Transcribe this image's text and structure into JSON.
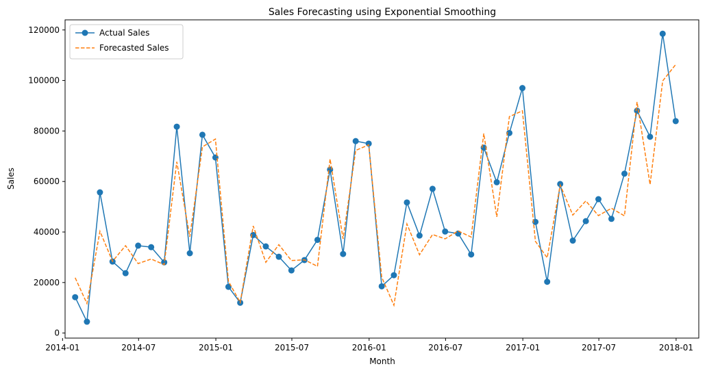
{
  "chart_data": {
    "type": "line",
    "title": "Sales Forecasting using Exponential Smoothing",
    "xlabel": "Month",
    "ylabel": "Sales",
    "x": [
      "2014-01-31",
      "2014-02-28",
      "2014-03-31",
      "2014-04-30",
      "2014-05-31",
      "2014-06-30",
      "2014-07-31",
      "2014-08-31",
      "2014-09-30",
      "2014-10-31",
      "2014-11-30",
      "2014-12-31",
      "2015-01-31",
      "2015-02-28",
      "2015-03-31",
      "2015-04-30",
      "2015-05-31",
      "2015-06-30",
      "2015-07-31",
      "2015-08-31",
      "2015-09-30",
      "2015-10-31",
      "2015-11-30",
      "2015-12-31",
      "2016-01-31",
      "2016-02-29",
      "2016-03-31",
      "2016-04-30",
      "2016-05-31",
      "2016-06-30",
      "2016-07-31",
      "2016-08-31",
      "2016-09-30",
      "2016-10-31",
      "2016-11-30",
      "2016-12-31",
      "2017-01-31",
      "2017-02-28",
      "2017-03-31",
      "2017-04-30",
      "2017-05-31",
      "2017-06-30",
      "2017-07-31",
      "2017-08-31",
      "2017-09-30",
      "2017-10-31",
      "2017-11-30",
      "2017-12-31"
    ],
    "series": [
      {
        "name": "Actual Sales",
        "color": "#1f77b4",
        "style": "solid-with-markers",
        "values": [
          14200,
          4500,
          55700,
          28300,
          23700,
          34600,
          34000,
          28000,
          81700,
          31600,
          78500,
          69500,
          18300,
          12000,
          38800,
          34300,
          30200,
          24800,
          28900,
          36900,
          64700,
          31300,
          76000,
          75000,
          18500,
          22900,
          51700,
          38600,
          57100,
          40200,
          39400,
          31100,
          73400,
          59700,
          79200,
          97000,
          44000,
          20300,
          59000,
          36600,
          44300,
          53000,
          45200,
          63100,
          88000,
          77700,
          118500,
          83900
        ]
      },
      {
        "name": "Forecasted Sales",
        "color": "#ff7f0e",
        "style": "dashed",
        "values": [
          21900,
          11700,
          40300,
          28400,
          34600,
          27500,
          29300,
          27100,
          67800,
          38100,
          73700,
          76800,
          20500,
          12100,
          42400,
          28000,
          35000,
          28700,
          29000,
          26400,
          68900,
          37300,
          72300,
          74500,
          22100,
          11000,
          43200,
          31000,
          39000,
          37300,
          40400,
          38000,
          79000,
          46000,
          85700,
          88000,
          36300,
          29800,
          58600,
          46700,
          52300,
          46500,
          49400,
          46400,
          91500,
          58800,
          99800,
          106300
        ]
      }
    ],
    "x_ticks": [
      "2014-01",
      "2014-07",
      "2015-01",
      "2015-07",
      "2016-01",
      "2016-07",
      "2017-01",
      "2017-07",
      "2018-01"
    ],
    "y_ticks": [
      "0",
      "20000",
      "40000",
      "60000",
      "80000",
      "100000",
      "120000"
    ],
    "ylim": [
      -2000,
      124000
    ],
    "xlim": [
      "2014-01-07",
      "2018-02-24"
    ],
    "legend_position": "top-left",
    "grid": false
  }
}
